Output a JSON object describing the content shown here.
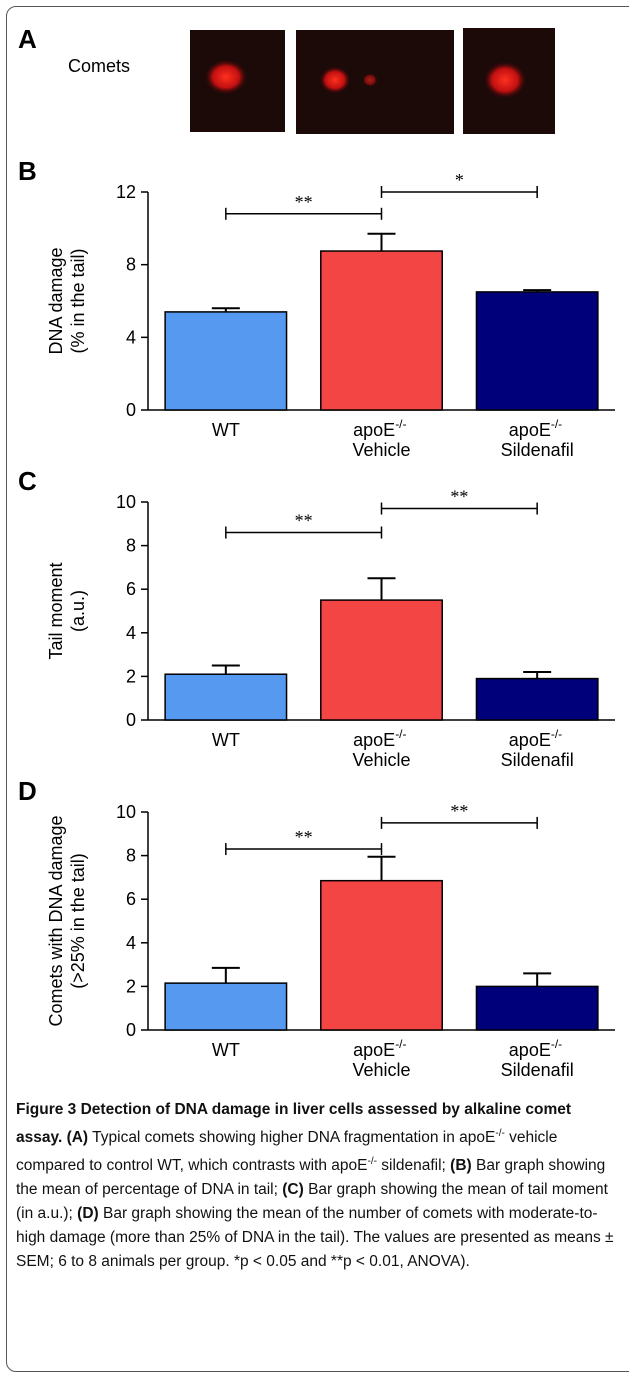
{
  "panel_a": {
    "label": "A",
    "title": "Comets"
  },
  "chart_data": [
    {
      "type": "bar",
      "panel": "B",
      "y_label": [
        "DNA damage",
        "(% in the tail)"
      ],
      "categories": [
        "WT",
        "apoE-/- Vehicle",
        "apoE-/- Sildenafil"
      ],
      "values": [
        5.4,
        8.75,
        6.5
      ],
      "errors": [
        0.2,
        0.95,
        0.1
      ],
      "colors": [
        "#5599f0",
        "#f44545",
        "#00007a"
      ],
      "ylim": [
        0,
        12
      ],
      "yticks": [
        0,
        4,
        8,
        12
      ],
      "significance": [
        {
          "from": 0,
          "to": 1,
          "y": 10.8,
          "label": "**"
        },
        {
          "from": 1,
          "to": 2,
          "y": 12,
          "label": "*"
        }
      ]
    },
    {
      "type": "bar",
      "panel": "C",
      "y_label": [
        "Tail moment",
        "(a.u.)"
      ],
      "categories": [
        "WT",
        "apoE-/- Vehicle",
        "apoE-/- Sildenafil"
      ],
      "values": [
        2.1,
        5.5,
        1.9
      ],
      "errors": [
        0.4,
        1.0,
        0.3
      ],
      "colors": [
        "#5599f0",
        "#f44545",
        "#00007a"
      ],
      "ylim": [
        0,
        10
      ],
      "yticks": [
        0,
        2,
        4,
        6,
        8,
        10
      ],
      "significance": [
        {
          "from": 0,
          "to": 1,
          "y": 8.6,
          "label": "**"
        },
        {
          "from": 1,
          "to": 2,
          "y": 9.7,
          "label": "**"
        }
      ]
    },
    {
      "type": "bar",
      "panel": "D",
      "y_label": [
        "Comets with DNA damage",
        "(>25% in the tail)"
      ],
      "categories": [
        "WT",
        "apoE-/- Vehicle",
        "apoE-/- Sildenafil"
      ],
      "values": [
        2.15,
        6.85,
        2.0
      ],
      "errors": [
        0.7,
        1.1,
        0.6
      ],
      "colors": [
        "#5599f0",
        "#f44545",
        "#00007a"
      ],
      "ylim": [
        0,
        10
      ],
      "yticks": [
        0,
        2,
        4,
        6,
        8,
        10
      ],
      "significance": [
        {
          "from": 0,
          "to": 1,
          "y": 8.3,
          "label": "**"
        },
        {
          "from": 1,
          "to": 2,
          "y": 9.5,
          "label": "**"
        }
      ]
    }
  ],
  "caption": [
    {
      "text": "Figure 3 Detection of DNA damage in liver cells assessed by alkaline comet assay.",
      "bold": true
    },
    {
      "text": " "
    },
    {
      "text": "(A)",
      "bold": true
    },
    {
      "text": " Typical comets showing higher DNA fragmentation in apoE"
    },
    {
      "text": "-/-",
      "sup": true
    },
    {
      "text": " vehicle compared to control WT, which contrasts with apoE"
    },
    {
      "text": "-/-",
      "sup": true
    },
    {
      "text": " sildenafil; "
    },
    {
      "text": "(B)",
      "bold": true
    },
    {
      "text": " Bar graph showing the mean of percentage of DNA in tail; "
    },
    {
      "text": "(C)",
      "bold": true
    },
    {
      "text": " Bar graph showing the mean of tail moment (in a.u.); "
    },
    {
      "text": "(D)",
      "bold": true
    },
    {
      "text": " Bar graph showing the mean of the number of comets with moderate-to-high damage (more than 25% of DNA in the tail). The values are presented as means ± SEM; 6 to 8 animals per group. *p < 0.05 and **p < 0.01, ANOVA)."
    }
  ]
}
